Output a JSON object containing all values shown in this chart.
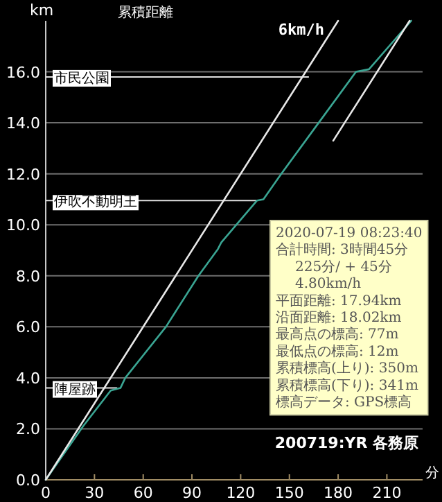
{
  "chart_data": {
    "type": "line",
    "title": "累積距離",
    "xlabel": "分",
    "ylabel": "km",
    "xlim": [
      0,
      232
    ],
    "xticks": [
      0,
      30,
      60,
      90,
      120,
      150,
      180,
      210
    ],
    "ylim": [
      0,
      18
    ],
    "yticks": [
      {
        "value": 0,
        "label": "0.0"
      },
      {
        "value": 2,
        "label": "2.0"
      },
      {
        "value": 4,
        "label": "4.0"
      },
      {
        "value": 6,
        "label": "6.0"
      },
      {
        "value": 8,
        "label": "8.0"
      },
      {
        "value": 10,
        "label": "10.0"
      },
      {
        "value": 12,
        "label": "12.0"
      },
      {
        "value": 14,
        "label": "14.0"
      },
      {
        "value": 16,
        "label": "16.0"
      }
    ],
    "grid": "y",
    "marker": "none",
    "line_style": "solid",
    "series": [
      {
        "color": "#3aa593",
        "x": [
          0,
          23,
          40,
          46,
          49,
          74,
          94,
          106,
          108,
          130,
          134,
          145,
          168,
          191,
          199,
          225
        ],
        "values": [
          0,
          2.1,
          3.5,
          3.6,
          4.0,
          6.0,
          8.0,
          9.05,
          9.3,
          10.95,
          11.0,
          12.0,
          14.0,
          16.0,
          16.1,
          18.0
        ]
      },
      {
        "name": "6km/h",
        "color": "#e8e8e8",
        "x": [
          0,
          180
        ],
        "values": [
          0,
          18
        ]
      },
      {
        "color": "#e8e8e8",
        "x": [
          177,
          224
        ],
        "values": [
          13.3,
          18.0
        ]
      }
    ],
    "annotations": [
      {
        "text": "市民公園",
        "x": 162,
        "y": 15.8
      },
      {
        "text": "伊吹不動明王",
        "x": 130,
        "y": 10.95
      },
      {
        "text": "陣屋跡",
        "x": 44,
        "y": 3.6
      },
      "2020-07-19 08:23:40",
      "合計時間: 3時間45分",
      "225分/ + 45分",
      "4.80km/h",
      "平面距離: 17.94km",
      "沿面距離: 18.02km",
      "最高点の標高: 77m",
      "最低点の標高: 12m",
      "累積標高(上り): 350m",
      "累積標高(下り): 341m",
      "標高データ: GPS標高",
      "200719:YR 各務原"
    ]
  }
}
